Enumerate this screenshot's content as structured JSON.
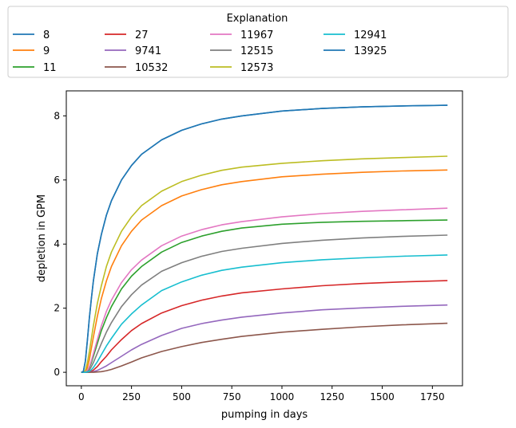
{
  "chart_data": {
    "type": "line",
    "xlabel": "pumping in days",
    "ylabel": "depletion in GPM",
    "xlim": [
      -75,
      1900
    ],
    "ylim": [
      -0.42,
      8.78
    ],
    "xticks": [
      0,
      250,
      500,
      750,
      1000,
      1250,
      1500,
      1750
    ],
    "yticks": [
      0,
      2,
      4,
      6,
      8
    ],
    "grid": false,
    "legend": {
      "title": "Explanation",
      "placement": "top",
      "columns": 5
    },
    "x": [
      0,
      10,
      20,
      30,
      40,
      50,
      60,
      80,
      100,
      125,
      150,
      200,
      250,
      300,
      400,
      500,
      600,
      700,
      800,
      1000,
      1200,
      1400,
      1600,
      1825
    ],
    "series": [
      {
        "name": "8",
        "color": "#1f77b4",
        "values": [
          0,
          0.02,
          0.35,
          1.0,
          1.7,
          2.3,
          2.85,
          3.7,
          4.3,
          4.9,
          5.35,
          6.0,
          6.45,
          6.8,
          7.25,
          7.55,
          7.75,
          7.9,
          8.0,
          8.15,
          8.23,
          8.28,
          8.31,
          8.33
        ]
      },
      {
        "name": "9",
        "color": "#ff7f0e",
        "values": [
          0,
          0,
          0.02,
          0.15,
          0.4,
          0.75,
          1.1,
          1.75,
          2.3,
          2.85,
          3.3,
          3.95,
          4.4,
          4.75,
          5.2,
          5.5,
          5.7,
          5.85,
          5.95,
          6.1,
          6.18,
          6.24,
          6.28,
          6.31
        ]
      },
      {
        "name": "11",
        "color": "#2ca02c",
        "values": [
          0,
          0,
          0,
          0.05,
          0.15,
          0.3,
          0.5,
          0.9,
          1.3,
          1.7,
          2.05,
          2.6,
          3.0,
          3.3,
          3.75,
          4.05,
          4.25,
          4.4,
          4.5,
          4.62,
          4.68,
          4.71,
          4.73,
          4.75
        ]
      },
      {
        "name": "27",
        "color": "#d62728",
        "values": [
          0,
          0,
          0,
          0,
          0.01,
          0.03,
          0.07,
          0.18,
          0.33,
          0.5,
          0.7,
          1.02,
          1.3,
          1.52,
          1.85,
          2.08,
          2.25,
          2.38,
          2.48,
          2.6,
          2.7,
          2.77,
          2.82,
          2.86
        ]
      },
      {
        "name": "9741",
        "color": "#9467bd",
        "values": [
          0,
          0,
          0,
          0,
          0,
          0.01,
          0.02,
          0.06,
          0.12,
          0.2,
          0.3,
          0.5,
          0.7,
          0.87,
          1.15,
          1.37,
          1.52,
          1.63,
          1.72,
          1.85,
          1.95,
          2.01,
          2.06,
          2.1
        ]
      },
      {
        "name": "10532",
        "color": "#8c564b",
        "values": [
          0,
          0,
          0,
          0,
          0,
          0,
          0,
          0.01,
          0.02,
          0.05,
          0.09,
          0.2,
          0.32,
          0.45,
          0.65,
          0.8,
          0.93,
          1.03,
          1.12,
          1.25,
          1.34,
          1.42,
          1.48,
          1.53
        ]
      },
      {
        "name": "11967",
        "color": "#e377c2",
        "values": [
          0,
          0,
          0.01,
          0.05,
          0.18,
          0.36,
          0.58,
          1.02,
          1.45,
          1.9,
          2.25,
          2.8,
          3.2,
          3.5,
          3.95,
          4.25,
          4.45,
          4.6,
          4.7,
          4.85,
          4.95,
          5.02,
          5.07,
          5.12
        ]
      },
      {
        "name": "12515",
        "color": "#7f7f7f",
        "values": [
          0,
          0,
          0,
          0.02,
          0.08,
          0.18,
          0.3,
          0.6,
          0.9,
          1.25,
          1.55,
          2.05,
          2.42,
          2.72,
          3.15,
          3.42,
          3.62,
          3.77,
          3.87,
          4.02,
          4.12,
          4.19,
          4.24,
          4.28
        ]
      },
      {
        "name": "12573",
        "color": "#bcbd22",
        "values": [
          0,
          0.01,
          0.06,
          0.3,
          0.65,
          1.05,
          1.45,
          2.15,
          2.7,
          3.3,
          3.75,
          4.4,
          4.85,
          5.2,
          5.65,
          5.95,
          6.15,
          6.3,
          6.4,
          6.52,
          6.6,
          6.66,
          6.7,
          6.74
        ]
      },
      {
        "name": "12941",
        "color": "#17becf",
        "values": [
          0,
          0,
          0,
          0.01,
          0.03,
          0.08,
          0.15,
          0.33,
          0.55,
          0.82,
          1.06,
          1.5,
          1.82,
          2.1,
          2.55,
          2.82,
          3.03,
          3.18,
          3.28,
          3.42,
          3.51,
          3.57,
          3.62,
          3.66
        ]
      },
      {
        "name": "13925",
        "color": "#1f77b4",
        "values": [
          0,
          0.02,
          0.35,
          1.0,
          1.7,
          2.3,
          2.85,
          3.7,
          4.3,
          4.9,
          5.35,
          6.0,
          6.45,
          6.8,
          7.25,
          7.55,
          7.75,
          7.9,
          8.0,
          8.15,
          8.23,
          8.28,
          8.31,
          8.33
        ]
      }
    ]
  }
}
